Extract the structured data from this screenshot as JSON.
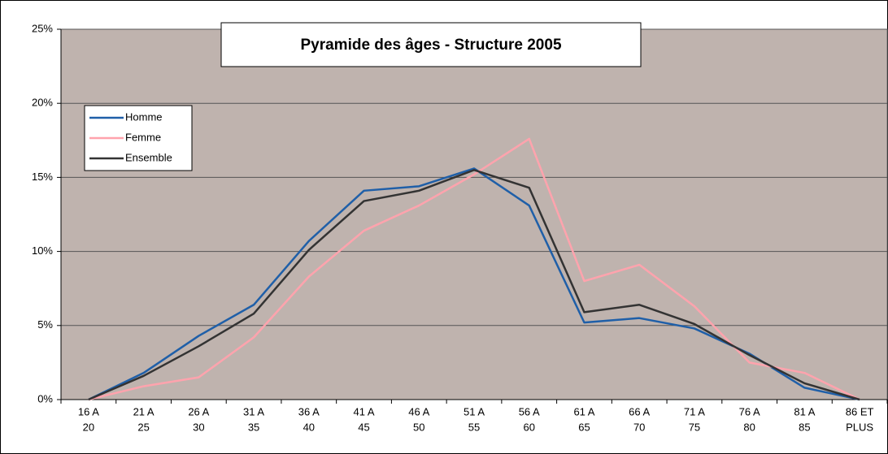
{
  "chart_data": {
    "type": "line",
    "title": "Pyramide des âges - Structure 2005",
    "categories": [
      [
        "16 A",
        "20"
      ],
      [
        "21 A",
        "25"
      ],
      [
        "26 A",
        "30"
      ],
      [
        "31 A",
        "35"
      ],
      [
        "36 A",
        "40"
      ],
      [
        "41 A",
        "45"
      ],
      [
        "46 A",
        "50"
      ],
      [
        "51 A",
        "55"
      ],
      [
        "56 A",
        "60"
      ],
      [
        "61 A",
        "65"
      ],
      [
        "66 A",
        "70"
      ],
      [
        "71 A",
        "75"
      ],
      [
        "76 A",
        "80"
      ],
      [
        "81 A",
        "85"
      ],
      [
        "86 ET",
        "PLUS"
      ]
    ],
    "series": [
      {
        "name": "Homme",
        "color": "#1f5fa8",
        "values": [
          0,
          1.8,
          4.3,
          6.4,
          10.7,
          14.1,
          14.4,
          15.6,
          13.1,
          5.2,
          5.5,
          4.8,
          3.1,
          0.8,
          0
        ]
      },
      {
        "name": "Femme",
        "color": "#ffa3ad",
        "values": [
          0,
          0.9,
          1.5,
          4.2,
          8.3,
          11.4,
          13.1,
          15.2,
          17.6,
          8.0,
          9.1,
          6.3,
          2.5,
          1.8,
          0
        ]
      },
      {
        "name": "Ensemble",
        "color": "#333333",
        "values": [
          0,
          1.6,
          3.6,
          5.8,
          10.1,
          13.4,
          14.1,
          15.5,
          14.3,
          5.9,
          6.4,
          5.1,
          3.0,
          1.1,
          0
        ]
      }
    ],
    "ylim": [
      0,
      25
    ],
    "yticks": [
      {
        "value": 0,
        "label": "0%"
      },
      {
        "value": 5,
        "label": "5%"
      },
      {
        "value": 10,
        "label": "10%"
      },
      {
        "value": 15,
        "label": "15%"
      },
      {
        "value": 20,
        "label": "20%"
      },
      {
        "value": 25,
        "label": "25%"
      }
    ],
    "grid": true,
    "background": "#bfb3ae"
  }
}
